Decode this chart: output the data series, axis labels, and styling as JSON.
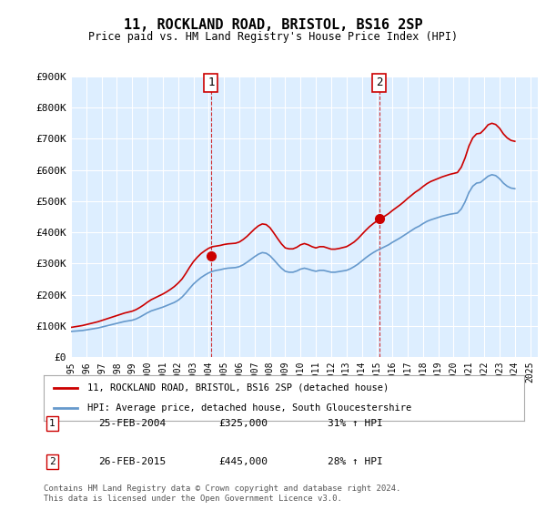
{
  "title": "11, ROCKLAND ROAD, BRISTOL, BS16 2SP",
  "subtitle": "Price paid vs. HM Land Registry's House Price Index (HPI)",
  "background_color": "#ffffff",
  "plot_background": "#ddeeff",
  "grid_color": "#ffffff",
  "ylim": [
    0,
    900000
  ],
  "yticks": [
    0,
    100000,
    200000,
    300000,
    400000,
    500000,
    600000,
    700000,
    800000,
    900000
  ],
  "ytick_labels": [
    "£0",
    "£100K",
    "£200K",
    "£300K",
    "£400K",
    "£500K",
    "£600K",
    "£700K",
    "£800K",
    "£900K"
  ],
  "xlim_start": 1995.0,
  "xlim_end": 2025.5,
  "red_line_color": "#cc0000",
  "blue_line_color": "#6699cc",
  "sale1_x": 2004.15,
  "sale1_y": 325000,
  "sale2_x": 2015.15,
  "sale2_y": 445000,
  "sale1_label": "1",
  "sale2_label": "2",
  "legend_label1": "11, ROCKLAND ROAD, BRISTOL, BS16 2SP (detached house)",
  "legend_label2": "HPI: Average price, detached house, South Gloucestershire",
  "annotation1_date": "25-FEB-2004",
  "annotation1_price": "£325,000",
  "annotation1_hpi": "31% ↑ HPI",
  "annotation2_date": "26-FEB-2015",
  "annotation2_price": "£445,000",
  "annotation2_hpi": "28% ↑ HPI",
  "footer": "Contains HM Land Registry data © Crown copyright and database right 2024.\nThis data is licensed under the Open Government Licence v3.0.",
  "hpi_years": [
    1995.0,
    1995.25,
    1995.5,
    1995.75,
    1996.0,
    1996.25,
    1996.5,
    1996.75,
    1997.0,
    1997.25,
    1997.5,
    1997.75,
    1998.0,
    1998.25,
    1998.5,
    1998.75,
    1999.0,
    1999.25,
    1999.5,
    1999.75,
    2000.0,
    2000.25,
    2000.5,
    2000.75,
    2001.0,
    2001.25,
    2001.5,
    2001.75,
    2002.0,
    2002.25,
    2002.5,
    2002.75,
    2003.0,
    2003.25,
    2003.5,
    2003.75,
    2004.0,
    2004.25,
    2004.5,
    2004.75,
    2005.0,
    2005.25,
    2005.5,
    2005.75,
    2006.0,
    2006.25,
    2006.5,
    2006.75,
    2007.0,
    2007.25,
    2007.5,
    2007.75,
    2008.0,
    2008.25,
    2008.5,
    2008.75,
    2009.0,
    2009.25,
    2009.5,
    2009.75,
    2010.0,
    2010.25,
    2010.5,
    2010.75,
    2011.0,
    2011.25,
    2011.5,
    2011.75,
    2012.0,
    2012.25,
    2012.5,
    2012.75,
    2013.0,
    2013.25,
    2013.5,
    2013.75,
    2014.0,
    2014.25,
    2014.5,
    2014.75,
    2015.0,
    2015.25,
    2015.5,
    2015.75,
    2016.0,
    2016.25,
    2016.5,
    2016.75,
    2017.0,
    2017.25,
    2017.5,
    2017.75,
    2018.0,
    2018.25,
    2018.5,
    2018.75,
    2019.0,
    2019.25,
    2019.5,
    2019.75,
    2020.0,
    2020.25,
    2020.5,
    2020.75,
    2021.0,
    2021.25,
    2021.5,
    2021.75,
    2022.0,
    2022.25,
    2022.5,
    2022.75,
    2023.0,
    2023.25,
    2023.5,
    2023.75,
    2024.0
  ],
  "hpi_values": [
    82000,
    83000,
    84000,
    85000,
    87000,
    89000,
    91000,
    93000,
    96000,
    99000,
    102000,
    105000,
    108000,
    111000,
    114000,
    116000,
    118000,
    122000,
    128000,
    135000,
    142000,
    148000,
    152000,
    156000,
    160000,
    165000,
    170000,
    175000,
    182000,
    192000,
    205000,
    220000,
    234000,
    245000,
    255000,
    263000,
    270000,
    275000,
    278000,
    280000,
    283000,
    285000,
    286000,
    287000,
    290000,
    296000,
    304000,
    313000,
    322000,
    330000,
    335000,
    333000,
    325000,
    312000,
    298000,
    285000,
    275000,
    272000,
    272000,
    276000,
    282000,
    285000,
    282000,
    278000,
    275000,
    278000,
    278000,
    275000,
    272000,
    272000,
    274000,
    276000,
    278000,
    283000,
    290000,
    298000,
    308000,
    318000,
    327000,
    335000,
    342000,
    348000,
    354000,
    360000,
    368000,
    375000,
    382000,
    390000,
    398000,
    406000,
    414000,
    420000,
    428000,
    435000,
    440000,
    444000,
    448000,
    452000,
    455000,
    458000,
    460000,
    462000,
    475000,
    498000,
    528000,
    548000,
    558000,
    560000,
    570000,
    580000,
    585000,
    582000,
    572000,
    558000,
    548000,
    542000,
    540000
  ],
  "red_years": [
    1995.0,
    1995.25,
    1995.5,
    1995.75,
    1996.0,
    1996.25,
    1996.5,
    1996.75,
    1997.0,
    1997.25,
    1997.5,
    1997.75,
    1998.0,
    1998.25,
    1998.5,
    1998.75,
    1999.0,
    1999.25,
    1999.5,
    1999.75,
    2000.0,
    2000.25,
    2000.5,
    2000.75,
    2001.0,
    2001.25,
    2001.5,
    2001.75,
    2002.0,
    2002.25,
    2002.5,
    2002.75,
    2003.0,
    2003.25,
    2003.5,
    2003.75,
    2004.0,
    2004.25,
    2004.5,
    2004.75,
    2005.0,
    2005.25,
    2005.5,
    2005.75,
    2006.0,
    2006.25,
    2006.5,
    2006.75,
    2007.0,
    2007.25,
    2007.5,
    2007.75,
    2008.0,
    2008.25,
    2008.5,
    2008.75,
    2009.0,
    2009.25,
    2009.5,
    2009.75,
    2010.0,
    2010.25,
    2010.5,
    2010.75,
    2011.0,
    2011.25,
    2011.5,
    2011.75,
    2012.0,
    2012.25,
    2012.5,
    2012.75,
    2013.0,
    2013.25,
    2013.5,
    2013.75,
    2014.0,
    2014.25,
    2014.5,
    2014.75,
    2015.0,
    2015.25,
    2015.5,
    2015.75,
    2016.0,
    2016.25,
    2016.5,
    2016.75,
    2017.0,
    2017.25,
    2017.5,
    2017.75,
    2018.0,
    2018.25,
    2018.5,
    2018.75,
    2019.0,
    2019.25,
    2019.5,
    2019.75,
    2020.0,
    2020.25,
    2020.5,
    2020.75,
    2021.0,
    2021.25,
    2021.5,
    2021.75,
    2022.0,
    2022.25,
    2022.5,
    2022.75,
    2023.0,
    2023.25,
    2023.5,
    2023.75,
    2024.0
  ],
  "red_values": [
    95000,
    97000,
    99000,
    101000,
    104000,
    107000,
    110000,
    113000,
    117000,
    121000,
    125000,
    129000,
    133000,
    137000,
    141000,
    144000,
    147000,
    152000,
    159000,
    167000,
    176000,
    184000,
    190000,
    196000,
    202000,
    209000,
    217000,
    226000,
    237000,
    250000,
    268000,
    288000,
    306000,
    320000,
    332000,
    341000,
    349000,
    354000,
    356000,
    358000,
    361000,
    363000,
    364000,
    365000,
    369000,
    377000,
    387000,
    399000,
    411000,
    421000,
    427000,
    425000,
    415000,
    398000,
    380000,
    363000,
    350000,
    347000,
    347000,
    352000,
    360000,
    364000,
    360000,
    354000,
    350000,
    354000,
    354000,
    350000,
    346000,
    346000,
    348000,
    351000,
    354000,
    361000,
    369000,
    380000,
    393000,
    406000,
    418000,
    428000,
    437000,
    444000,
    452000,
    460000,
    470000,
    479000,
    488000,
    498000,
    509000,
    519000,
    529000,
    537000,
    547000,
    556000,
    563000,
    568000,
    573000,
    578000,
    582000,
    586000,
    589000,
    592000,
    609000,
    639000,
    677000,
    703000,
    716000,
    718000,
    730000,
    745000,
    750000,
    746000,
    734000,
    716000,
    703000,
    695000,
    692000
  ]
}
